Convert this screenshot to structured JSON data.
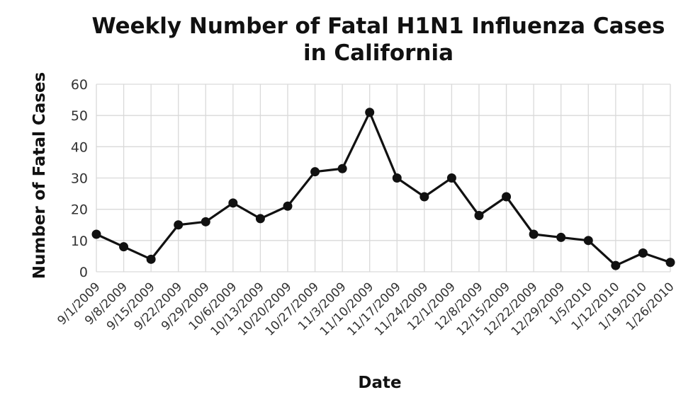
{
  "chart_data": {
    "type": "line",
    "title_lines": [
      "Weekly Number of Fatal H1N1 Influenza Cases",
      "in California"
    ],
    "xlabel": "Date",
    "ylabel": "Number of Fatal Cases",
    "ylim": [
      0,
      60
    ],
    "yticks": [
      "0",
      "10",
      "20",
      "30",
      "40",
      "50",
      "60"
    ],
    "grid": true,
    "legend": "none",
    "line_color": "#111111",
    "categories": [
      "9/1/2009",
      "9/8/2009",
      "9/15/2009",
      "9/22/2009",
      "9/29/2009",
      "10/6/2009",
      "10/13/2009",
      "10/20/2009",
      "10/27/2009",
      "11/3/2009",
      "11/10/2009",
      "11/17/2009",
      "11/24/2009",
      "12/1/2009",
      "12/8/2009",
      "12/15/2009",
      "12/22/2009",
      "12/29/2009",
      "1/5/2010",
      "1/12/2010",
      "1/19/2010",
      "1/26/2010"
    ],
    "values": [
      12,
      8,
      4,
      15,
      16,
      22,
      17,
      21,
      32,
      33,
      51,
      30,
      24,
      30,
      18,
      24,
      12,
      11,
      10,
      2,
      6,
      3
    ]
  }
}
